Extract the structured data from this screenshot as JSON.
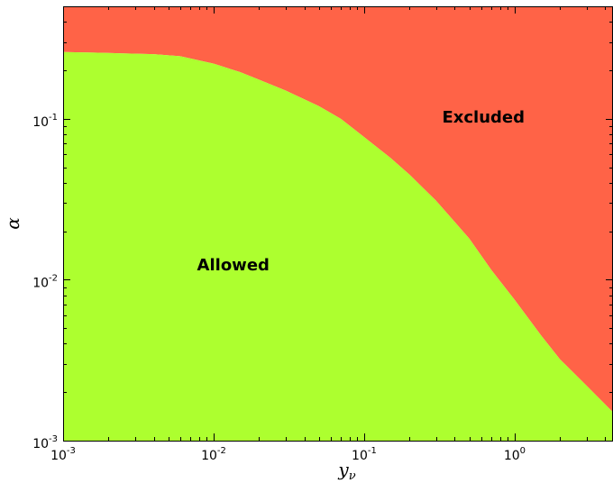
{
  "chart_data": {
    "type": "area",
    "xscale": "log",
    "yscale": "log",
    "xlim": [
      0.001,
      4.5
    ],
    "ylim": [
      0.001,
      0.5
    ],
    "xlabel": "y_{\\nu}",
    "ylabel": "α",
    "xticks": [
      {
        "value": 0.001,
        "base": "10",
        "exp": "-3"
      },
      {
        "value": 0.01,
        "base": "10",
        "exp": "-2"
      },
      {
        "value": 0.1,
        "base": "10",
        "exp": "-1"
      },
      {
        "value": 1,
        "base": "10",
        "exp": "0"
      }
    ],
    "yticks": [
      {
        "value": 0.001,
        "base": "10",
        "exp": "-3"
      },
      {
        "value": 0.01,
        "base": "10",
        "exp": "-2"
      },
      {
        "value": 0.1,
        "base": "10",
        "exp": "-1"
      }
    ],
    "boundary": {
      "x": [
        0.001,
        0.0016,
        0.0025,
        0.004,
        0.006,
        0.01,
        0.015,
        0.02,
        0.03,
        0.05,
        0.07,
        0.1,
        0.15,
        0.2,
        0.3,
        0.5,
        0.7,
        1.0,
        1.5,
        2.0,
        3.0,
        4.5
      ],
      "y": [
        0.26,
        0.258,
        0.255,
        0.252,
        0.245,
        0.22,
        0.195,
        0.175,
        0.15,
        0.12,
        0.1,
        0.077,
        0.057,
        0.045,
        0.031,
        0.018,
        0.0115,
        0.0075,
        0.0045,
        0.0032,
        0.0022,
        0.0015
      ]
    },
    "regions": [
      {
        "name": "Allowed",
        "side": "below",
        "color": "#adff2f",
        "label_x": 0.0135,
        "label_y": 0.0125
      },
      {
        "name": "Excluded",
        "side": "above",
        "color": "#ff6347",
        "label_x": 0.62,
        "label_y": 0.104
      }
    ]
  }
}
